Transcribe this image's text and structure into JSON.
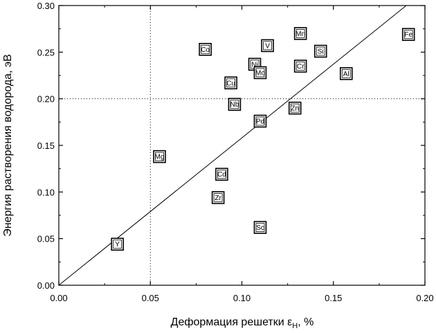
{
  "chart_data": {
    "type": "scatter",
    "title": "",
    "xlabel": "Деформация решетки ε",
    "xlabel_sub": "H",
    "xlabel_suffix": ", %",
    "ylabel": "Энергия растворения водорода, эВ",
    "xlim": [
      0.0,
      0.2
    ],
    "ylim": [
      0.0,
      0.3
    ],
    "x_ticks": [
      "0.00",
      "0.05",
      "0.10",
      "0.15",
      "0.20"
    ],
    "y_ticks": [
      "0.00",
      "0.05",
      "0.10",
      "0.15",
      "0.20",
      "0.25",
      "0.30"
    ],
    "grid": "dotted reference lines at x=0.05 and y=0.20",
    "points": [
      {
        "label": "Y",
        "x": 0.032,
        "y": 0.044
      },
      {
        "label": "Mg",
        "x": 0.055,
        "y": 0.138
      },
      {
        "label": "Co",
        "x": 0.08,
        "y": 0.253
      },
      {
        "label": "Zr",
        "x": 0.087,
        "y": 0.094
      },
      {
        "label": "Cd",
        "x": 0.089,
        "y": 0.119
      },
      {
        "label": "Cu",
        "x": 0.094,
        "y": 0.217
      },
      {
        "label": "Nb",
        "x": 0.096,
        "y": 0.194
      },
      {
        "label": "Ni",
        "x": 0.107,
        "y": 0.237
      },
      {
        "label": "Mo",
        "x": 0.11,
        "y": 0.228
      },
      {
        "label": "Pd",
        "x": 0.11,
        "y": 0.176
      },
      {
        "label": "Sc",
        "x": 0.11,
        "y": 0.062
      },
      {
        "label": "V",
        "x": 0.114,
        "y": 0.257
      },
      {
        "label": "Zn",
        "x": 0.129,
        "y": 0.19
      },
      {
        "label": "Cr",
        "x": 0.132,
        "y": 0.235
      },
      {
        "label": "Mn",
        "x": 0.132,
        "y": 0.27
      },
      {
        "label": "Si",
        "x": 0.143,
        "y": 0.251
      },
      {
        "label": "Al",
        "x": 0.157,
        "y": 0.227
      },
      {
        "label": "Fe",
        "x": 0.191,
        "y": 0.269
      }
    ],
    "fit_line": {
      "x": [
        0.0,
        0.1898
      ],
      "y": [
        0.0,
        0.3
      ]
    }
  }
}
